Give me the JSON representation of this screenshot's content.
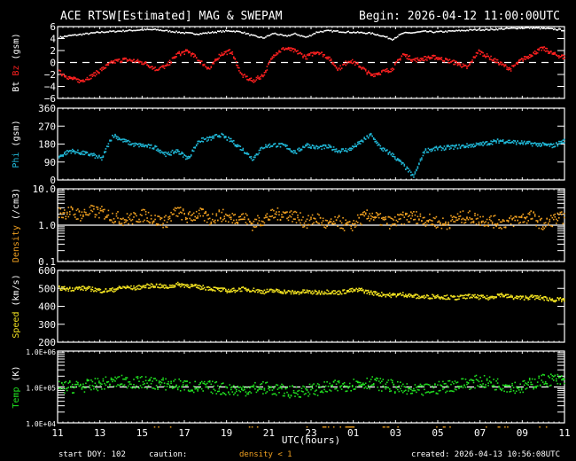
{
  "header": {
    "title": "ACE RTSW[Estimated] MAG & SWEPAM",
    "begin": "Begin: 2026-04-12 11:00:00UTC"
  },
  "footer": {
    "start_doy": "start DOY: 102",
    "caution": "caution:",
    "caution_note": "density < 1",
    "created": "created: 2026-04-13 10:56:08UTC",
    "xlabel": "UTC(hours)"
  },
  "colors": {
    "bt": "#ffffff",
    "bz": "#ff2020",
    "phi": "#20b8d8",
    "density": "#f0a020",
    "speed": "#f0e020",
    "temp": "#20e020",
    "caution": "#f0a020"
  },
  "chart_data": [
    {
      "type": "scatter",
      "panel": "mag_field",
      "title": "ACE RTSW[Estimated] MAG & SWEPAM",
      "ylabel_parts": [
        {
          "text": "Bt",
          "color": "#ffffff"
        },
        {
          "text": "Bz",
          "color": "#ff2020"
        },
        {
          "text": "(gsm)",
          "color": "#ffffff"
        }
      ],
      "ylim": [
        -6,
        6
      ],
      "yticks": [
        6,
        4,
        2,
        0,
        -2,
        -4,
        -6
      ],
      "yscale": "linear",
      "reference_line": 0,
      "series": [
        {
          "name": "Bt",
          "color": "#ffffff",
          "values": [
            4.3,
            4.6,
            4.8,
            5.0,
            5.2,
            5.3,
            5.4,
            5.5,
            5.6,
            5.6,
            5.4,
            5.2,
            5.0,
            4.9,
            5.1,
            5.3,
            5.4,
            5.2,
            4.6,
            4.2,
            5.0,
            4.5,
            4.9,
            4.3,
            5.2,
            5.4,
            5.3,
            5.2,
            5.1,
            5.0,
            4.6,
            4.0,
            5.0,
            5.1,
            5.3,
            5.2,
            5.3,
            5.4,
            5.5,
            5.6,
            5.6,
            5.7,
            5.8,
            5.9,
            5.9,
            5.8,
            5.7,
            5.5
          ]
        },
        {
          "name": "Bz",
          "color": "#ff2020",
          "values": [
            -1.5,
            -2.5,
            -3.0,
            -2.2,
            -1.0,
            0.2,
            0.6,
            0.4,
            0.0,
            -1.0,
            -0.5,
            1.5,
            2.0,
            0.5,
            -1.0,
            1.5,
            2.0,
            -2.0,
            -3.0,
            -2.0,
            1.5,
            2.5,
            2.0,
            1.0,
            2.0,
            1.0,
            -1.0,
            0.5,
            -0.5,
            -2.0,
            -1.5,
            -1.0,
            1.5,
            0.5,
            0.8,
            1.0,
            0.5,
            0.0,
            -0.8,
            2.0,
            1.0,
            0.0,
            -1.0,
            0.5,
            1.5,
            2.5,
            1.5,
            1.0
          ]
        }
      ]
    },
    {
      "type": "scatter",
      "panel": "phi",
      "ylabel_parts": [
        {
          "text": "Phi",
          "color": "#20b8d8"
        },
        {
          "text": "(gsm)",
          "color": "#ffffff"
        }
      ],
      "ylim": [
        0,
        360
      ],
      "yticks": [
        360,
        270,
        180,
        90,
        0
      ],
      "yscale": "linear",
      "series": [
        {
          "name": "Phi",
          "color": "#20b8d8",
          "values": [
            120,
            150,
            140,
            130,
            110,
            230,
            200,
            180,
            175,
            165,
            130,
            150,
            110,
            200,
            210,
            230,
            200,
            160,
            110,
            170,
            180,
            175,
            140,
            180,
            165,
            170,
            150,
            155,
            190,
            230,
            160,
            130,
            80,
            20,
            150,
            160,
            165,
            170,
            175,
            180,
            190,
            200,
            195,
            190,
            185,
            180,
            175,
            200
          ]
        }
      ]
    },
    {
      "type": "scatter",
      "panel": "density",
      "ylabel_parts": [
        {
          "text": "Density",
          "color": "#f0a020"
        },
        {
          "text": "(/cm3)",
          "color": "#ffffff"
        }
      ],
      "ylim": [
        0.1,
        10.0
      ],
      "yticks": [
        10.0,
        1.0,
        0.1
      ],
      "ytick_labels": [
        "10.0",
        "1.0",
        "0.1"
      ],
      "yscale": "log",
      "reference_line": 1.0,
      "series": [
        {
          "name": "Density",
          "color": "#f0a020",
          "values": [
            2.2,
            2.4,
            2.0,
            2.5,
            2.3,
            1.8,
            1.5,
            1.6,
            2.0,
            1.4,
            1.3,
            2.5,
            1.6,
            2.2,
            1.5,
            2.0,
            1.6,
            1.8,
            1.1,
            1.5,
            2.0,
            2.2,
            1.8,
            1.2,
            1.6,
            1.0,
            1.3,
            0.9,
            1.5,
            2.0,
            1.4,
            1.2,
            1.6,
            1.8,
            1.5,
            1.3,
            1.1,
            1.6,
            1.8,
            1.5,
            1.4,
            1.2,
            1.3,
            1.6,
            1.8,
            1.0,
            1.5,
            1.7
          ]
        }
      ]
    },
    {
      "type": "scatter",
      "panel": "speed",
      "ylabel_parts": [
        {
          "text": "Speed",
          "color": "#f0e020"
        },
        {
          "text": "(km/s)",
          "color": "#ffffff"
        }
      ],
      "ylim": [
        200,
        600
      ],
      "yticks": [
        600,
        500,
        400,
        300,
        200
      ],
      "yscale": "linear",
      "series": [
        {
          "name": "Speed",
          "color": "#f0e020",
          "values": [
            505,
            500,
            505,
            500,
            490,
            495,
            510,
            505,
            515,
            520,
            510,
            525,
            520,
            510,
            505,
            495,
            490,
            500,
            495,
            485,
            490,
            485,
            480,
            485,
            480,
            485,
            480,
            490,
            495,
            480,
            470,
            465,
            470,
            460,
            455,
            460,
            455,
            450,
            460,
            455,
            450,
            470,
            455,
            450,
            455,
            450,
            440,
            440
          ]
        }
      ]
    },
    {
      "type": "scatter",
      "panel": "temperature",
      "ylabel_parts": [
        {
          "text": "Temp",
          "color": "#20e020"
        },
        {
          "text": "(K)",
          "color": "#ffffff"
        }
      ],
      "ylim": [
        10000,
        1000000
      ],
      "yticks": [
        1000000,
        100000,
        10000
      ],
      "ytick_labels": [
        "1.0E+06",
        "1.0E+05",
        "1.0E+04"
      ],
      "yscale": "log",
      "reference_line": 100000,
      "series": [
        {
          "name": "Temp",
          "color": "#20e020",
          "values": [
            100000,
            105000,
            110000,
            115000,
            130000,
            140000,
            150000,
            135000,
            140000,
            130000,
            125000,
            120000,
            110000,
            100000,
            105000,
            95000,
            90000,
            85000,
            95000,
            100000,
            90000,
            80000,
            75000,
            85000,
            90000,
            100000,
            110000,
            120000,
            130000,
            140000,
            120000,
            110000,
            90000,
            80000,
            85000,
            95000,
            110000,
            120000,
            130000,
            150000,
            140000,
            120000,
            110000,
            100000,
            130000,
            160000,
            170000,
            150000
          ]
        }
      ]
    }
  ],
  "x_axis": {
    "label": "UTC(hours)",
    "ticks": [
      "11",
      "13",
      "15",
      "17",
      "19",
      "21",
      "23",
      "01",
      "03",
      "05",
      "07",
      "09",
      "11"
    ],
    "range_hours": 24
  }
}
